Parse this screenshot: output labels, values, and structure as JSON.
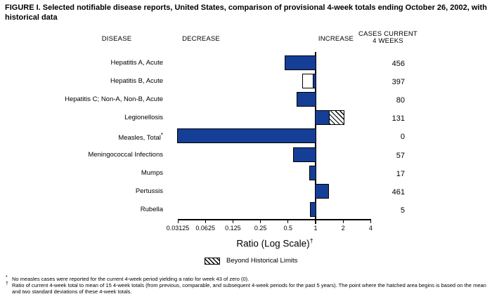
{
  "title": "FIGURE I. Selected notifiable disease reports, United States, comparison of provisional 4-week totals ending October 26, 2002, with historical data",
  "headers": {
    "disease": "DISEASE",
    "decrease": "DECREASE",
    "increase": "INCREASE",
    "cases_line1": "CASES CURRENT",
    "cases_line2": "4 WEEKS"
  },
  "chart_data": {
    "type": "bar",
    "orientation": "horizontal",
    "scale": "log2",
    "title": "Selected notifiable disease reports, ratio of current 4-week total to historical mean",
    "xlabel": "Ratio (Log Scale)",
    "xlabel_sup": "†",
    "xlim": [
      0.03125,
      4
    ],
    "baseline": 1,
    "bar_color": "#153e96",
    "axis": {
      "ticks": [
        0.03125,
        0.0625,
        0.125,
        0.25,
        0.5,
        1,
        2,
        4
      ],
      "tick_labels": [
        "0.03125",
        "0.0625",
        "0.125",
        "0.25",
        "0.5",
        "1",
        "2",
        "4"
      ]
    },
    "rows": [
      {
        "label": "Hepatitis A, Acute",
        "sup": "",
        "ratio": 0.47,
        "cases": "456"
      },
      {
        "label": "Hepatitis B, Acute",
        "sup": "",
        "ratio": 0.95,
        "open_from": 0.73,
        "cases": "397"
      },
      {
        "label": "Hepatitis C; Non-A, Non-B, Acute",
        "sup": "",
        "ratio": 0.63,
        "cases": "80"
      },
      {
        "label": "Legionellosis",
        "sup": "",
        "ratio": 1.4,
        "beyond": 2.0,
        "cases": "131"
      },
      {
        "label": "Measles, Total",
        "sup": "*",
        "ratio": 0.03125,
        "cases": "0"
      },
      {
        "label": "Meningococcal Infections",
        "sup": "",
        "ratio": 0.58,
        "cases": "57"
      },
      {
        "label": "Mumps",
        "sup": "",
        "ratio": 0.87,
        "cases": "17"
      },
      {
        "label": "Pertussis",
        "sup": "",
        "ratio": 1.37,
        "cases": "461"
      },
      {
        "label": "Rubella",
        "sup": "",
        "ratio": 0.88,
        "cases": "5"
      }
    ],
    "legend": {
      "swatch": "hatched-beyond-limits",
      "label": "Beyond Historical Limits"
    },
    "legend_position": "bottom-center"
  },
  "footnotes": [
    {
      "marker": "*",
      "text": "No measles cases were reported for the current 4-week period yielding a ratio for week 43 of zero (0)."
    },
    {
      "marker": "†",
      "text": "Ratio of current 4-week total to mean of 15 4-week totals (from previous, comparable, and subsequent 4-week periods for the past 5 years). The point where the hatched area begins is based on the mean and two standard deviations of these 4-week totals."
    }
  ]
}
